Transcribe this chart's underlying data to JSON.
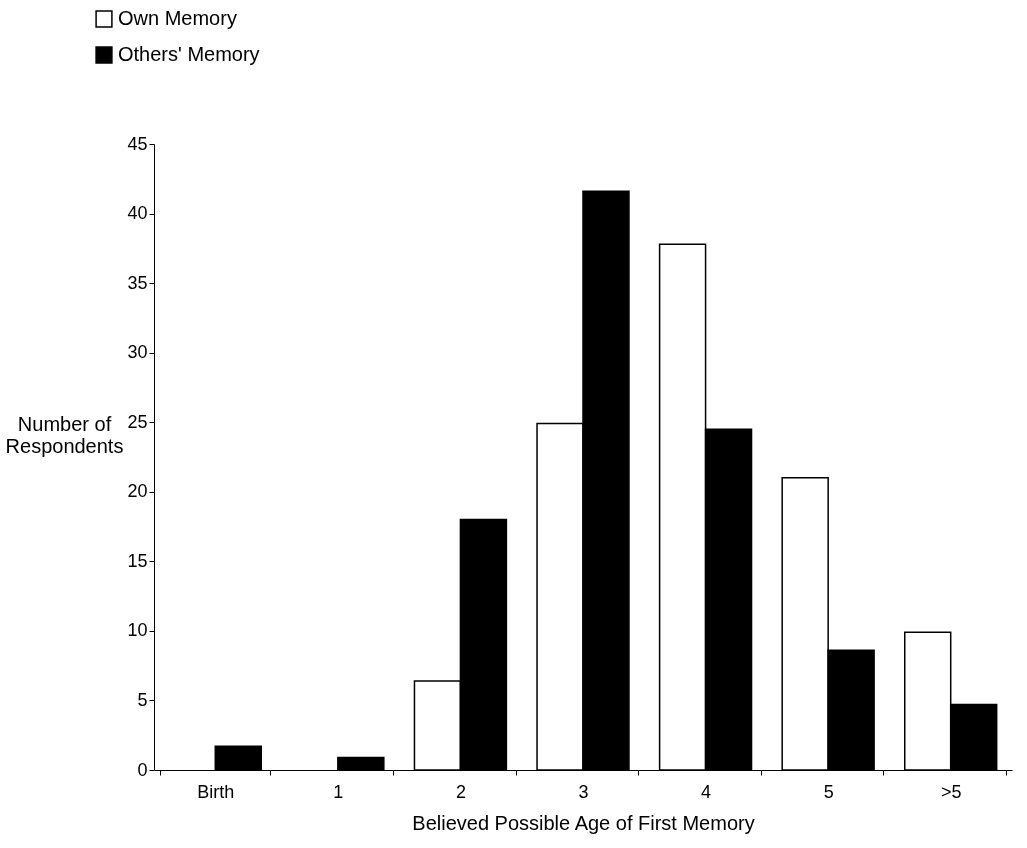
{
  "chart_data": {
    "type": "bar",
    "xlabel": "Believed Possible Age of First Memory",
    "ylabel": "Number of Respondents",
    "categories": [
      "Birth",
      "1",
      "2",
      "3",
      "4",
      "5",
      ">5"
    ],
    "series": [
      {
        "name": "Own Memory",
        "color": "#ffffff",
        "values": [
          0,
          0,
          6.4,
          24.9,
          37.8,
          21,
          9.9
        ]
      },
      {
        "name": "Others' Memory",
        "color": "#000000",
        "values": [
          1.7,
          0.9,
          18,
          41.6,
          24.5,
          8.6,
          4.7
        ]
      }
    ],
    "ylim": [
      0,
      45
    ],
    "yticks": [
      0,
      5,
      10,
      15,
      20,
      25,
      30,
      35,
      40,
      45
    ],
    "grid": false,
    "legend": "top left"
  }
}
